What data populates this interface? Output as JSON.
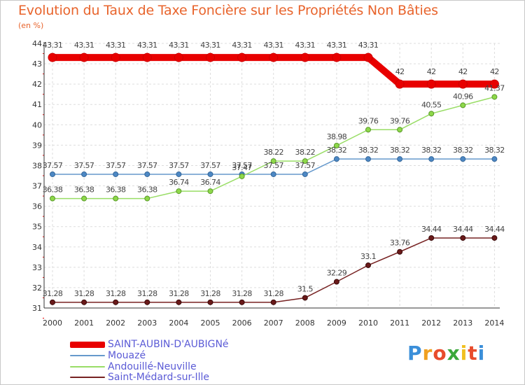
{
  "chart_data": {
    "type": "line",
    "title": "Evolution du Taux de Taxe Foncière sur les Propriétés Non Bâties",
    "unit_label": "(en %)",
    "x": [
      "2000",
      "2001",
      "2002",
      "2003",
      "2004",
      "2005",
      "2006",
      "2007",
      "2008",
      "2009",
      "2010",
      "2011",
      "2012",
      "2013",
      "2014"
    ],
    "y_ticks": [
      "31",
      "32",
      "33",
      "34",
      "35",
      "36",
      "37",
      "38",
      "39",
      "40",
      "41",
      "42",
      "43",
      "44"
    ],
    "ylim": [
      31,
      44
    ],
    "grid": true,
    "legend_position": "bottom-left",
    "series": [
      {
        "name": "SAINT-AUBIN-D'AUBIGNé",
        "color": "#e80000",
        "values": [
          43.31,
          43.31,
          43.31,
          43.31,
          43.31,
          43.31,
          43.31,
          43.31,
          43.31,
          43.31,
          43.31,
          42,
          42,
          42,
          42
        ],
        "labels": [
          "43.31",
          "43.31",
          "43.31",
          "43.31",
          "43.31",
          "43.31",
          "43.31",
          "43.31",
          "43.31",
          "43.31",
          "43.31",
          "42",
          "42",
          "42",
          "42"
        ]
      },
      {
        "name": "Mouazé",
        "color": "#6699cc",
        "values": [
          37.57,
          37.57,
          37.57,
          37.57,
          37.57,
          37.57,
          37.57,
          37.57,
          37.57,
          38.32,
          38.32,
          38.32,
          38.32,
          38.32,
          38.32
        ],
        "labels": [
          "37.57",
          "37.57",
          "37.57",
          "37.57",
          "37.57",
          "37.57",
          "37.57",
          "37.57",
          "37.57",
          "38.32",
          "38.32",
          "38.32",
          "38.32",
          "38.32",
          "38.32"
        ]
      },
      {
        "name": "Andouillé-Neuville",
        "color": "#99dd66",
        "values": [
          36.38,
          36.38,
          36.38,
          36.38,
          36.74,
          36.74,
          37.47,
          38.22,
          38.22,
          38.98,
          39.76,
          39.76,
          40.55,
          40.96,
          41.37
        ],
        "labels": [
          "36.38",
          "36.38",
          "36.38",
          "36.38",
          "36.74",
          "36.74",
          "37.47",
          "38.22",
          "38.22",
          "38.98",
          "39.76",
          "39.76",
          "40.55",
          "40.96",
          "41.37"
        ]
      },
      {
        "name": "Saint-Médard-sur-Ille",
        "color": "#772222",
        "values": [
          31.28,
          31.28,
          31.28,
          31.28,
          31.28,
          31.28,
          31.28,
          31.28,
          31.5,
          32.29,
          33.1,
          33.76,
          34.44,
          34.44,
          34.44
        ],
        "labels": [
          "31.28",
          "31.28",
          "31.28",
          "31.28",
          "31.28",
          "31.28",
          "31.28",
          "31.28",
          "31.5",
          "32.29",
          "33.1",
          "33.76",
          "34.44",
          "34.44",
          "34.44"
        ]
      }
    ]
  },
  "logo": {
    "letters": [
      "P",
      "r",
      "o",
      "x",
      "i",
      "t",
      "i"
    ],
    "colors": [
      "#3b8fd9",
      "#f0a020",
      "#e84c2c",
      "#3aa83a",
      "#f0c020",
      "#e84c2c",
      "#3b8fd9"
    ]
  }
}
